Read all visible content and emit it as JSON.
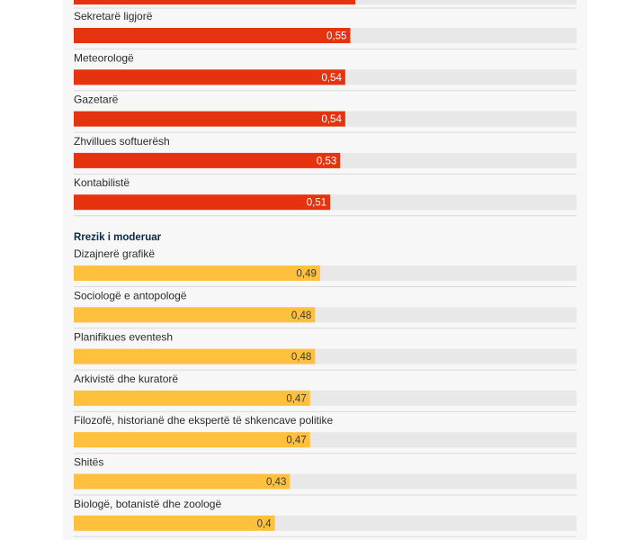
{
  "chart_data": {
    "type": "bar",
    "orientation": "horizontal",
    "xlim": [
      0,
      1
    ],
    "grid": false,
    "colors": {
      "track": "#e8e8e8",
      "divider": "#dadada",
      "high": "#e5330f",
      "moderate": "#ffc13d",
      "value_text_high": "#ffffff",
      "value_text_moderate": "#3a3a3a"
    },
    "groups": [
      {
        "title": "",
        "level": "high",
        "partial_bar_value_at_top": 0.56,
        "bars": [
          {
            "label": "Sekretarë ligjorë",
            "value": 0.55,
            "value_label": "0,55"
          },
          {
            "label": "Meteorologë",
            "value": 0.54,
            "value_label": "0,54"
          },
          {
            "label": "Gazetarë",
            "value": 0.54,
            "value_label": "0,54"
          },
          {
            "label": "Zhvillues softuerësh",
            "value": 0.53,
            "value_label": "0,53"
          },
          {
            "label": "Kontabilistë",
            "value": 0.51,
            "value_label": "0,51"
          }
        ]
      },
      {
        "title": "Rrezik i moderuar",
        "level": "moderate",
        "bars": [
          {
            "label": "Dizajnerë grafikë",
            "value": 0.49,
            "value_label": "0,49"
          },
          {
            "label": "Sociologë e antopologë",
            "value": 0.48,
            "value_label": "0,48"
          },
          {
            "label": "Planifikues eventesh",
            "value": 0.48,
            "value_label": "0,48"
          },
          {
            "label": "Arkivistë dhe kuratorë",
            "value": 0.47,
            "value_label": "0,47"
          },
          {
            "label": "Filozofë, historianë dhe ekspertë të shkencave politike",
            "value": 0.47,
            "value_label": "0,47"
          },
          {
            "label": "Shitës",
            "value": 0.43,
            "value_label": "0,43"
          },
          {
            "label": "Biologë, botanistë dhe zoologë",
            "value": 0.4,
            "value_label": "0,4"
          }
        ]
      }
    ]
  }
}
